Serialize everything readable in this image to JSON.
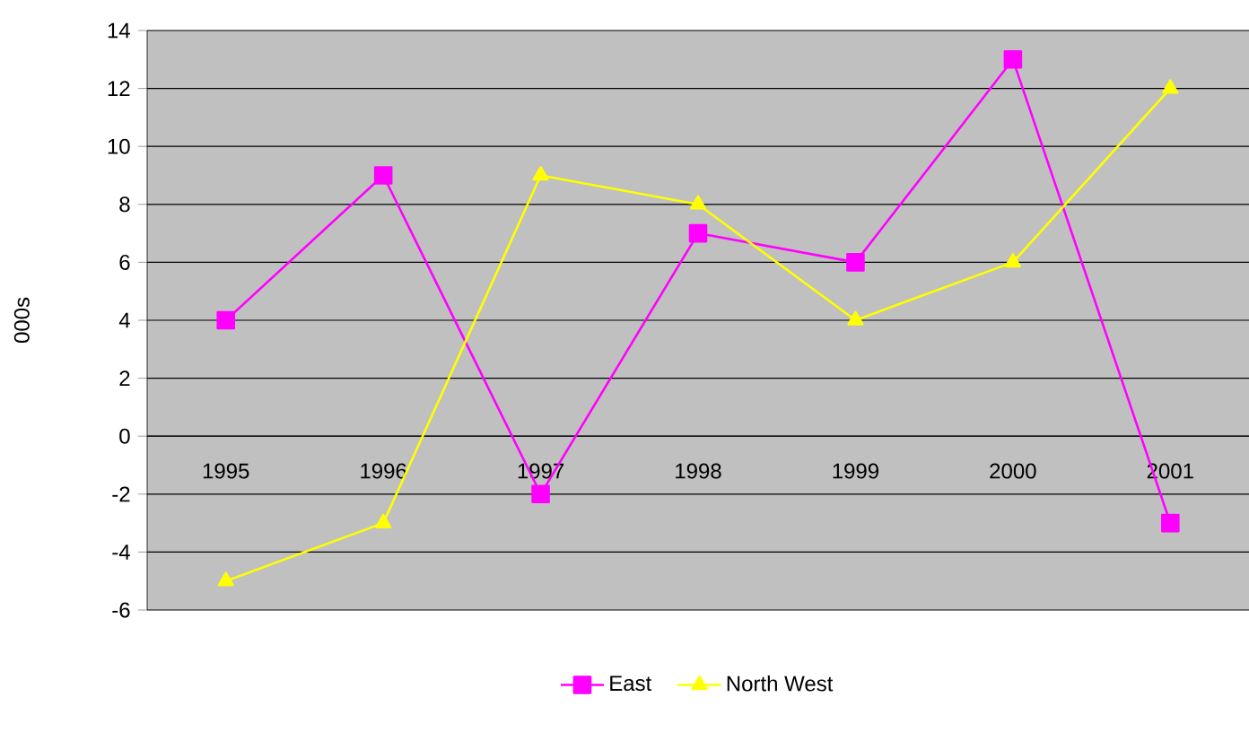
{
  "chart_data": {
    "type": "line",
    "ylabel": "000s",
    "categories": [
      "1995",
      "1996",
      "1997",
      "1998",
      "1999",
      "2000",
      "2001"
    ],
    "series": [
      {
        "name": "East",
        "color": "#ff00ff",
        "marker": "square",
        "values": [
          4,
          9,
          -2,
          7,
          6,
          13,
          -3
        ]
      },
      {
        "name": "North West",
        "color": "#ffff00",
        "marker": "triangle",
        "values": [
          -5,
          -3,
          9,
          8,
          4,
          6,
          12
        ]
      }
    ],
    "ylim": [
      -6,
      14
    ],
    "yticks": [
      -6,
      -4,
      -2,
      0,
      2,
      4,
      6,
      8,
      10,
      12,
      14
    ],
    "grid": "y",
    "legend": "bottom"
  }
}
